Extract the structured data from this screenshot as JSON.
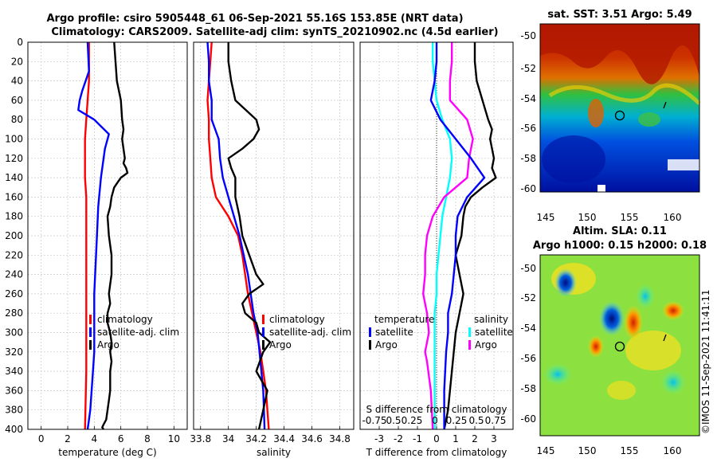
{
  "header": {
    "line1": "Argo profile: csiro 5905448_61 06-Sep-2021 55.16S 153.85E (NRT data)",
    "line2": "Climatology: CARS2009. Satellite-adj clim: synTS_20210902.nc (4.5d earlier)"
  },
  "colors": {
    "climatology": "#ff0000",
    "satellite": "#0000ff",
    "argo": "#000000",
    "salinity_diff": "#ff00ff",
    "temperature_diff_sat": "#00ffff"
  },
  "chart_data": [
    {
      "id": "temp",
      "type": "line",
      "xlabel": "temperature (deg C)",
      "ylabel": "",
      "xlim": [
        -1,
        11
      ],
      "ylim": [
        400,
        0
      ],
      "xticks": [
        0,
        2,
        4,
        6,
        8,
        10
      ],
      "yticks": [
        0,
        20,
        40,
        60,
        80,
        100,
        120,
        140,
        160,
        180,
        200,
        220,
        240,
        260,
        280,
        300,
        320,
        340,
        360,
        380,
        400
      ],
      "grid": true,
      "legend": [
        "climatology",
        "satellite-adj. clim",
        "Argo"
      ],
      "legend_position": "lower-right",
      "series": [
        {
          "name": "climatology",
          "color": "#ff0000",
          "x": [
            3.6,
            3.6,
            3.6,
            3.5,
            3.4,
            3.3,
            3.3,
            3.3,
            3.4,
            3.4,
            3.4,
            3.4,
            3.4,
            3.4,
            3.4,
            3.4,
            3.4,
            3.4,
            3.3
          ],
          "depth": [
            0,
            20,
            40,
            60,
            80,
            100,
            120,
            140,
            160,
            180,
            200,
            220,
            240,
            260,
            280,
            300,
            320,
            340,
            400
          ]
        },
        {
          "name": "satellite-adj. clim",
          "color": "#0000ff",
          "x": [
            3.5,
            3.6,
            3.1,
            2.9,
            2.8,
            4.0,
            5.1,
            4.8,
            4.5,
            4.3,
            4.2,
            4.1,
            4.0,
            4.0,
            4.0,
            3.9,
            3.8,
            3.7,
            3.6,
            3.5
          ],
          "depth": [
            0,
            30,
            50,
            60,
            70,
            80,
            95,
            110,
            140,
            170,
            200,
            230,
            260,
            290,
            320,
            340,
            360,
            380,
            390,
            400
          ]
        },
        {
          "name": "Argo",
          "color": "#000000",
          "x": [
            5.5,
            5.6,
            5.7,
            6.0,
            6.1,
            6.2,
            6.1,
            6.2,
            6.3,
            6.2,
            6.4,
            6.5,
            6.0,
            5.5,
            5.3,
            5.2,
            5.0,
            5.1,
            5.3,
            5.3,
            5.2,
            5.1,
            5.2,
            5.0,
            5.0,
            5.2,
            5.3,
            5.2,
            5.3,
            5.2,
            5.2,
            5.2,
            5.1,
            5.0,
            4.9,
            4.7,
            4.6,
            4.7
          ],
          "depth": [
            0,
            20,
            40,
            60,
            80,
            90,
            100,
            110,
            120,
            125,
            130,
            135,
            140,
            150,
            160,
            170,
            180,
            200,
            220,
            240,
            250,
            260,
            270,
            280,
            290,
            300,
            310,
            320,
            330,
            340,
            350,
            360,
            370,
            380,
            390,
            395,
            398,
            400
          ]
        }
      ]
    },
    {
      "id": "sal",
      "type": "line",
      "xlabel": "salinity",
      "xlim": [
        33.75,
        34.9
      ],
      "ylim": [
        400,
        0
      ],
      "xticks": [
        33.8,
        34,
        34.2,
        34.4,
        34.6,
        34.8
      ],
      "grid": true,
      "legend": [
        "climatology",
        "satellite-adj. clim",
        "Argo"
      ],
      "legend_position": "lower-right",
      "series": [
        {
          "name": "climatology",
          "color": "#ff0000",
          "x": [
            33.88,
            33.87,
            33.86,
            33.85,
            33.86,
            33.86,
            33.87,
            33.88,
            33.91,
            34.0,
            34.07,
            34.1,
            34.12,
            34.14,
            34.17,
            34.2,
            34.23,
            34.25,
            34.27,
            34.28,
            34.29
          ],
          "depth": [
            0,
            20,
            40,
            60,
            80,
            100,
            120,
            140,
            160,
            180,
            200,
            220,
            240,
            260,
            280,
            300,
            320,
            340,
            360,
            380,
            400
          ]
        },
        {
          "name": "satellite-adj. clim",
          "color": "#0000ff",
          "x": [
            33.85,
            33.86,
            33.86,
            33.88,
            33.88,
            33.93,
            33.94,
            33.96,
            34.0,
            34.04,
            34.08,
            34.11,
            34.14,
            34.16,
            34.18,
            34.21,
            34.23,
            34.25,
            34.26
          ],
          "depth": [
            0,
            20,
            40,
            60,
            80,
            100,
            120,
            140,
            160,
            180,
            200,
            220,
            240,
            260,
            280,
            300,
            330,
            360,
            400
          ]
        },
        {
          "name": "Argo",
          "color": "#000000",
          "x": [
            34.0,
            34.0,
            34.02,
            34.05,
            34.2,
            34.22,
            34.18,
            34.1,
            34.0,
            34.02,
            34.05,
            34.05,
            34.08,
            34.1,
            34.15,
            34.2,
            34.25,
            34.15,
            34.1,
            34.12,
            34.2,
            34.22,
            34.3,
            34.25,
            34.2,
            34.28,
            34.25,
            34.22
          ],
          "depth": [
            0,
            20,
            40,
            60,
            80,
            90,
            100,
            110,
            120,
            130,
            140,
            160,
            180,
            200,
            220,
            240,
            250,
            260,
            270,
            280,
            290,
            300,
            310,
            320,
            340,
            360,
            380,
            400
          ]
        }
      ]
    },
    {
      "id": "diff",
      "type": "line",
      "xlabel": "T difference from climatology",
      "top_label": "S difference from climatology",
      "top_ticks": [
        "-0.75",
        "0.5",
        "0.25",
        "0",
        "0.25",
        "0.5",
        "0.75"
      ],
      "xlim": [
        -4,
        4
      ],
      "ylim": [
        400,
        0
      ],
      "xticks": [
        -3,
        -2,
        -1,
        0,
        1,
        2,
        3
      ],
      "grid": true,
      "legend_left_title": "temperature",
      "legend_right_title": "salinity",
      "legend_left": [
        "satellite",
        "Argo"
      ],
      "legend_right": [
        "satellite",
        "Argo"
      ],
      "series": [
        {
          "name": "temperature satellite",
          "color": "#00ffff",
          "x": [
            -0.2,
            -0.2,
            -0.1,
            0.0,
            0.3,
            0.7,
            0.8,
            0.7,
            0.5,
            0.3,
            0.2,
            0.1,
            0.0,
            0.0,
            -0.1,
            -0.1,
            -0.1,
            -0.1,
            -0.1
          ],
          "depth": [
            0,
            20,
            40,
            60,
            80,
            100,
            120,
            140,
            160,
            180,
            200,
            220,
            240,
            260,
            280,
            300,
            340,
            360,
            400
          ]
        },
        {
          "name": "salinity Argo",
          "color": "#ff00ff",
          "x": [
            0.8,
            0.8,
            0.7,
            0.7,
            1.6,
            1.9,
            1.7,
            1.6,
            0.4,
            -0.2,
            -0.5,
            -0.6,
            -0.6,
            -0.7,
            -0.5,
            -0.4,
            -0.6,
            -0.5,
            -0.3,
            -0.2
          ],
          "depth": [
            0,
            20,
            40,
            60,
            80,
            100,
            120,
            140,
            160,
            180,
            200,
            220,
            240,
            260,
            280,
            300,
            320,
            330,
            360,
            400
          ]
        },
        {
          "name": "temperature Argo",
          "color": "#000000",
          "x": [
            2.0,
            2.0,
            2.1,
            2.4,
            2.7,
            2.9,
            2.8,
            2.9,
            3.0,
            2.9,
            3.1,
            2.4,
            1.8,
            1.5,
            1.4,
            1.3,
            1.0,
            1.2,
            1.4,
            1.2,
            1.0,
            0.9,
            0.8,
            0.6,
            0.4
          ],
          "depth": [
            0,
            20,
            40,
            60,
            80,
            90,
            100,
            110,
            120,
            130,
            140,
            150,
            160,
            170,
            180,
            200,
            220,
            240,
            260,
            280,
            300,
            320,
            340,
            380,
            400
          ]
        },
        {
          "name": "temperature satellite-adj",
          "color": "#0000ff",
          "x": [
            0.0,
            0.0,
            -0.1,
            -0.3,
            0.2,
            1.0,
            1.8,
            2.5,
            1.6,
            1.1,
            1.0,
            1.0,
            0.9,
            0.8,
            0.6,
            0.6,
            0.5,
            0.4,
            0.4
          ],
          "depth": [
            0,
            20,
            40,
            60,
            80,
            100,
            120,
            140,
            160,
            180,
            200,
            220,
            240,
            260,
            280,
            300,
            320,
            360,
            400
          ]
        }
      ]
    }
  ],
  "map_sst": {
    "title": "sat. SST: 3.51 Argo: 5.49",
    "xticks": [
      "145",
      "150",
      "155",
      "160"
    ],
    "yticks": [
      "-50",
      "-52",
      "-54",
      "-56",
      "-58",
      "-60"
    ]
  },
  "map_sla": {
    "title1": "Altim. SLA: 0.11",
    "title2": "Argo h1000: 0.15 h2000: 0.18",
    "xticks": [
      "145",
      "150",
      "155",
      "160"
    ],
    "yticks": [
      "-50",
      "-52",
      "-54",
      "-56",
      "-58",
      "-60"
    ]
  },
  "copyright": "©IMOS 11-Sep-2021 11:41:11"
}
